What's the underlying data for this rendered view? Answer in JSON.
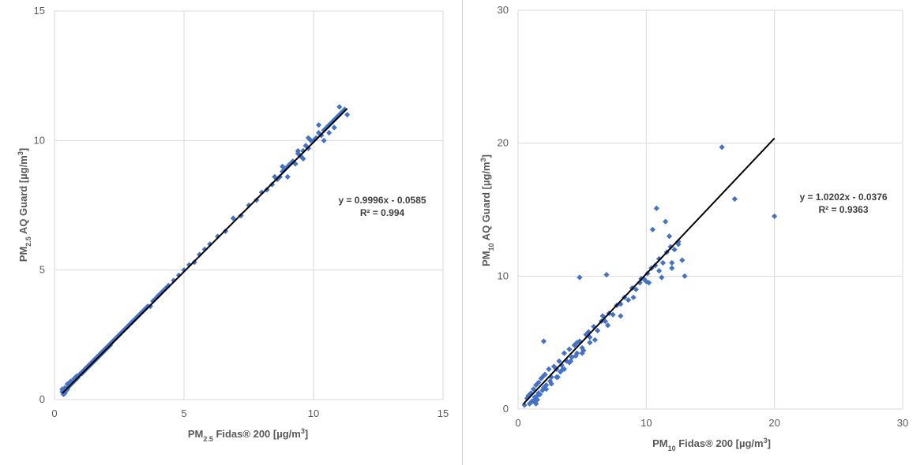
{
  "chart_data": [
    {
      "type": "scatter",
      "xlabel": "PM2.5 Fidas® 200  [µg/m³]",
      "xlabel_parts": {
        "pre": "PM",
        "sub": "2.5",
        "post": " Fidas® 200  [µg/m",
        "sup": "3",
        "end": "]"
      },
      "ylabel": "PM2.5 AQ Guard [µg/m³]",
      "ylabel_parts": {
        "pre": "PM",
        "sub": "2.5",
        "post": " AQ Guard [µg/m",
        "sup": "3",
        "end": "]"
      },
      "xlim": [
        0,
        15
      ],
      "ylim": [
        0,
        15
      ],
      "xticks": [
        "0",
        "5",
        "10",
        "15"
      ],
      "yticks": [
        "0",
        "5",
        "10",
        "15"
      ],
      "grid": true,
      "marker_color": "#4472c4",
      "trendline": {
        "slope": 0.9996,
        "intercept": -0.0585,
        "x_range": [
          0.3,
          11.3
        ],
        "color": "#000000"
      },
      "equation": "y = 0.9996x - 0.0585",
      "r2_text": "R² = 0.994",
      "points_x": [
        0.3,
        0.35,
        0.4,
        0.45,
        0.5,
        0.5,
        0.55,
        0.6,
        0.4,
        0.3,
        0.62,
        0.7,
        0.75,
        0.8,
        0.85,
        0.9,
        0.95,
        1.0,
        1.05,
        1.1,
        1.15,
        1.2,
        1.25,
        1.3,
        1.35,
        1.4,
        1.45,
        1.5,
        1.55,
        1.6,
        1.65,
        1.7,
        1.75,
        1.8,
        1.85,
        1.9,
        1.95,
        2.0,
        2.05,
        2.1,
        2.15,
        2.2,
        2.3,
        2.4,
        2.5,
        2.6,
        2.7,
        2.8,
        2.9,
        3.0,
        3.1,
        3.2,
        3.3,
        3.4,
        3.5,
        3.6,
        3.7,
        3.8,
        3.9,
        4.0,
        4.1,
        4.2,
        4.3,
        4.4,
        4.6,
        4.8,
        5.0,
        5.2,
        5.4,
        5.6,
        5.8,
        6.0,
        6.3,
        6.6,
        6.9,
        7.2,
        7.5,
        7.8,
        8.0,
        8.2,
        8.4,
        8.5,
        8.6,
        8.7,
        8.8,
        8.9,
        9.0,
        9.1,
        9.2,
        9.3,
        9.4,
        9.5,
        9.6,
        9.7,
        9.8,
        9.9,
        10.0,
        10.1,
        10.2,
        10.3,
        10.4,
        10.5,
        10.6,
        10.7,
        10.8,
        10.9,
        11.0,
        11.1,
        11.2,
        11.3,
        9.0,
        9.4,
        9.8,
        10.2,
        10.6,
        11.0,
        8.8,
        9.6,
        10.4,
        10.8,
        1.0,
        1.5,
        2.0,
        2.5,
        3.0,
        3.5,
        4.0,
        0.8,
        1.2,
        1.8,
        2.2,
        2.8,
        3.2
      ],
      "points_y": [
        0.3,
        0.2,
        0.45,
        0.35,
        0.4,
        0.6,
        0.5,
        0.55,
        0.25,
        0.4,
        0.7,
        0.65,
        0.8,
        0.75,
        0.9,
        0.85,
        0.95,
        1.0,
        1.0,
        1.1,
        1.1,
        1.2,
        1.2,
        1.3,
        1.3,
        1.4,
        1.4,
        1.5,
        1.5,
        1.6,
        1.6,
        1.7,
        1.7,
        1.8,
        1.8,
        1.9,
        1.9,
        2.0,
        2.0,
        2.1,
        2.1,
        2.2,
        2.3,
        2.4,
        2.5,
        2.6,
        2.7,
        2.8,
        2.9,
        3.0,
        3.1,
        3.2,
        3.3,
        3.4,
        3.5,
        3.6,
        3.6,
        3.8,
        3.9,
        4.0,
        4.1,
        4.2,
        4.3,
        4.4,
        4.6,
        4.8,
        5.0,
        5.2,
        5.3,
        5.6,
        5.8,
        6.0,
        6.3,
        6.5,
        7.0,
        7.1,
        7.5,
        7.7,
        8.0,
        8.1,
        8.3,
        8.6,
        8.5,
        8.6,
        8.8,
        8.9,
        9.0,
        9.1,
        9.2,
        9.1,
        9.5,
        9.4,
        9.6,
        9.8,
        9.7,
        10.0,
        10.0,
        10.1,
        10.3,
        10.2,
        10.4,
        10.5,
        10.6,
        10.7,
        10.8,
        10.9,
        11.0,
        11.1,
        11.2,
        11.0,
        8.6,
        9.6,
        10.1,
        10.6,
        10.3,
        11.3,
        9.0,
        9.3,
        10.0,
        10.5,
        1.0,
        1.5,
        2.0,
        2.5,
        3.0,
        3.5,
        4.0,
        0.8,
        1.2,
        1.8,
        2.2,
        2.8,
        3.2
      ]
    },
    {
      "type": "scatter",
      "xlabel": "PM10 Fidas® 200  [µg/m³]",
      "xlabel_parts": {
        "pre": "PM",
        "sub": "10",
        "post": " Fidas® 200  [µg/m",
        "sup": "3",
        "end": "]"
      },
      "ylabel": "PM10 AQ Guard [µg/m³]",
      "ylabel_parts": {
        "pre": "PM",
        "sub": "10",
        "post": " AQ Guard [µg/m",
        "sup": "3",
        "end": "]"
      },
      "xlim": [
        0,
        30
      ],
      "ylim": [
        0,
        30
      ],
      "xticks": [
        "0",
        "10",
        "20",
        "30"
      ],
      "yticks": [
        "0",
        "10",
        "20",
        "30"
      ],
      "grid": true,
      "marker_color": "#4472c4",
      "trendline": {
        "slope": 1.0202,
        "intercept": -0.0376,
        "x_range": [
          0.4,
          20.0
        ],
        "color": "#000000"
      },
      "equation": "y = 1.0202x - 0.0376",
      "r2_text": "R² = 0.9363",
      "points_x": [
        0.5,
        0.7,
        0.9,
        1.0,
        1.1,
        1.2,
        1.3,
        1.4,
        1.5,
        1.6,
        1.7,
        1.8,
        1.9,
        2.0,
        2.2,
        2.4,
        2.6,
        2.8,
        3.0,
        3.2,
        3.4,
        3.6,
        3.8,
        4.0,
        4.2,
        4.4,
        4.6,
        4.8,
        5.0,
        5.3,
        5.6,
        5.9,
        6.2,
        6.5,
        6.8,
        7.1,
        7.4,
        7.7,
        8.0,
        8.3,
        8.6,
        8.9,
        9.2,
        9.5,
        9.8,
        10.1,
        10.4,
        10.7,
        11.0,
        11.3,
        11.6,
        11.9,
        12.2,
        12.5,
        12.8,
        13.0,
        1.0,
        1.5,
        2.0,
        2.5,
        3.0,
        3.5,
        4.0,
        4.5,
        5.0,
        6.0,
        7.0,
        8.0,
        9.0,
        10.0,
        11.0,
        12.0,
        0.8,
        1.2,
        1.6,
        2.1,
        2.6,
        3.1,
        3.6,
        4.1,
        4.6,
        5.1,
        5.6,
        10.5,
        11.5,
        12.5,
        10.8,
        11.8,
        1.4,
        2.2,
        3.3,
        4.4,
        5.5,
        6.6,
        15.9,
        16.9,
        20.0,
        4.8,
        6.9,
        2.0,
        12.0,
        11.2,
        10.2,
        9.6
      ],
      "points_y": [
        0.3,
        0.8,
        0.4,
        1.2,
        0.6,
        1.5,
        0.9,
        1.8,
        0.7,
        2.0,
        1.1,
        2.3,
        1.4,
        2.5,
        1.8,
        3.0,
        2.4,
        3.2,
        3.0,
        3.6,
        3.3,
        4.2,
        3.6,
        4.5,
        3.9,
        4.8,
        4.2,
        5.1,
        4.6,
        5.6,
        5.0,
        6.2,
        5.9,
        6.6,
        6.6,
        7.2,
        7.1,
        7.8,
        7.9,
        8.4,
        8.2,
        9.1,
        9.0,
        9.5,
        9.8,
        10.2,
        10.6,
        10.8,
        11.3,
        11.0,
        11.8,
        12.2,
        12.0,
        12.6,
        11.2,
        10.0,
        0.5,
        1.0,
        1.6,
        2.1,
        2.4,
        3.0,
        3.5,
        4.0,
        4.2,
        5.2,
        6.3,
        7.0,
        8.4,
        9.6,
        10.4,
        11.0,
        1.0,
        0.6,
        1.2,
        2.6,
        1.9,
        2.4,
        3.0,
        3.6,
        5.0,
        4.4,
        5.4,
        13.5,
        14.1,
        12.4,
        15.1,
        13.0,
        0.4,
        1.5,
        2.8,
        4.8,
        5.8,
        7.0,
        19.7,
        15.8,
        14.5,
        9.9,
        10.1,
        5.1,
        10.6,
        9.9,
        9.5,
        9.8
      ]
    }
  ]
}
